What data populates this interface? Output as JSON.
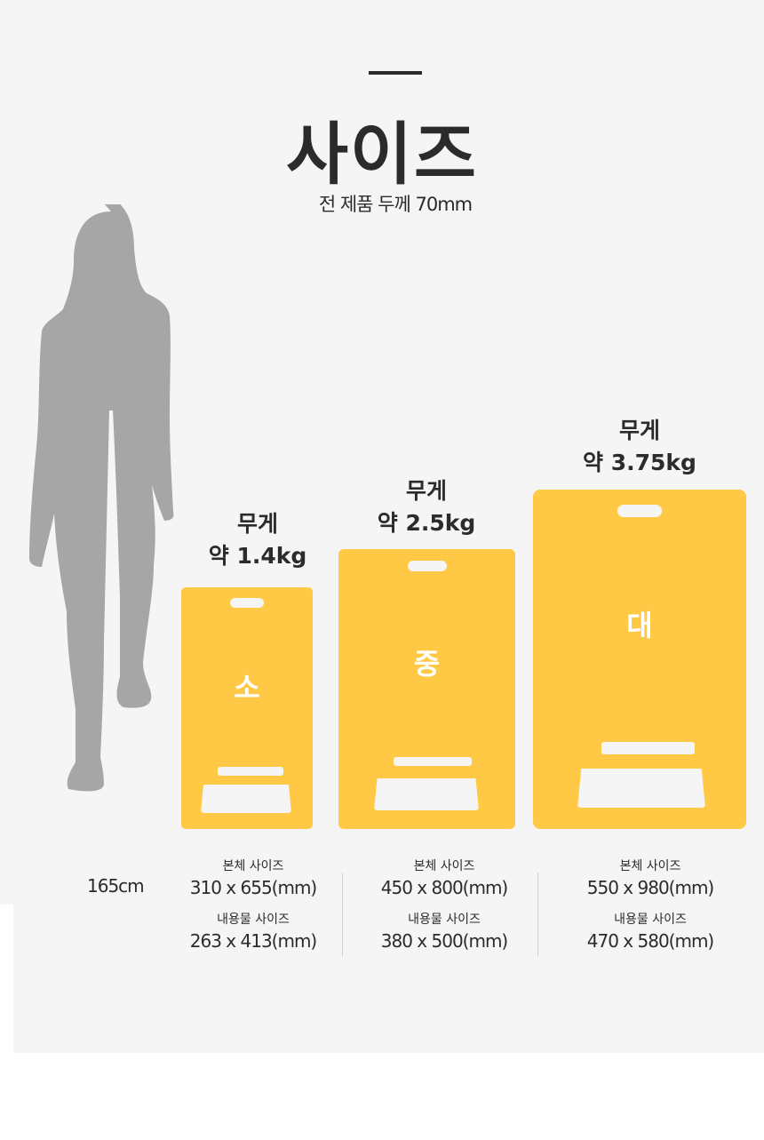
{
  "title": "사이즈",
  "subtitle": "전 제품 두께 70mm",
  "person_height": "165cm",
  "colors": {
    "board": "#ffc845",
    "silhouette": "#a6a6a6",
    "background": "#f5f5f5"
  },
  "products": [
    {
      "label": "소",
      "weight_title": "무게",
      "weight": "약 1.4kg",
      "body_label": "본체 사이즈",
      "body_size": "310 x 655(mm)",
      "content_label": "내용물 사이즈",
      "content_size": "263 x 413(mm)"
    },
    {
      "label": "중",
      "weight_title": "무게",
      "weight": "약 2.5kg",
      "body_label": "본체 사이즈",
      "body_size": "450 x 800(mm)",
      "content_label": "내용물 사이즈",
      "content_size": "380 x 500(mm)"
    },
    {
      "label": "대",
      "weight_title": "무게",
      "weight": "약 3.75kg",
      "body_label": "본체 사이즈",
      "body_size": "550 x 980(mm)",
      "content_label": "내용물 사이즈",
      "content_size": "470 x 580(mm)"
    }
  ]
}
